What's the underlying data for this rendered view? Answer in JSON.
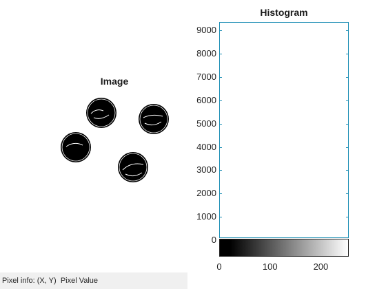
{
  "image_panel": {
    "title": "Image"
  },
  "histogram": {
    "title": "Histogram",
    "y_ticks": [
      "9000",
      "8000",
      "7000",
      "6000",
      "5000",
      "4000",
      "3000",
      "2000",
      "1000",
      "0"
    ],
    "x_ticks": [
      "0",
      "100",
      "200"
    ]
  },
  "status": {
    "prefix": "Pixel info:",
    "coords": "(X, Y)",
    "value_label": "Pixel Value"
  },
  "colors": {
    "axis": "#1e8fb5",
    "status_bg": "#f0f0f0"
  }
}
